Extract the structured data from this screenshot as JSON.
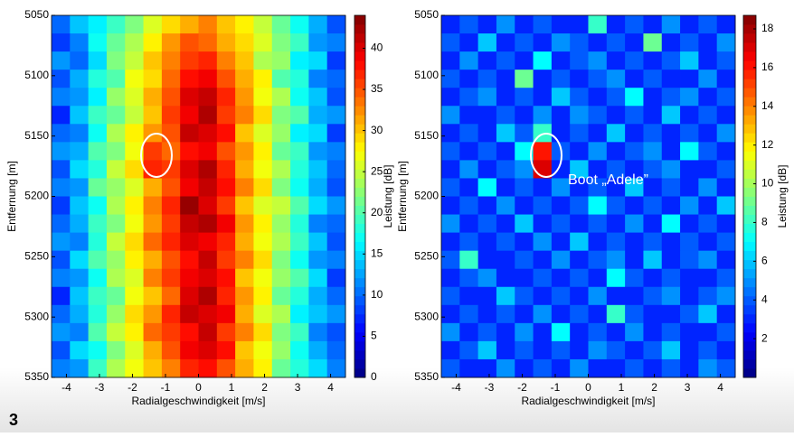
{
  "figure_label": "3",
  "chart_data": [
    {
      "type": "heatmap",
      "colormap": "jet",
      "xlabel": "Radialgeschwindigkeit [m/s]",
      "ylabel": "Entfernung [m]",
      "xlim": [
        -4.45,
        4.45
      ],
      "xticks": [
        -4,
        -3,
        -2,
        -1,
        0,
        1,
        2,
        3,
        4
      ],
      "ylim": [
        5050,
        5350
      ],
      "yticks": [
        5050,
        5100,
        5150,
        5200,
        5250,
        5300,
        5350
      ],
      "colorbar_label": "Leistung [dB]",
      "clim": [
        0,
        44
      ],
      "cticks": [
        0,
        5,
        10,
        15,
        20,
        25,
        30,
        35,
        40
      ],
      "z": [
        [
          10,
          14,
          16,
          19,
          22,
          26,
          29,
          31,
          33,
          30,
          28,
          25,
          21,
          17,
          13,
          9
        ],
        [
          8,
          11,
          17,
          21,
          24,
          28,
          32,
          35,
          34,
          31,
          29,
          26,
          22,
          19,
          12,
          11
        ],
        [
          12,
          10,
          15,
          22,
          25,
          30,
          33,
          36,
          37,
          33,
          30,
          24,
          23,
          16,
          15,
          8
        ],
        [
          9,
          13,
          18,
          20,
          27,
          29,
          34,
          38,
          39,
          35,
          31,
          28,
          20,
          18,
          11,
          10
        ],
        [
          11,
          12,
          16,
          23,
          26,
          31,
          35,
          40,
          41,
          37,
          32,
          27,
          24,
          17,
          14,
          9
        ],
        [
          7,
          14,
          19,
          21,
          25,
          30,
          36,
          39,
          42,
          36,
          33,
          29,
          22,
          20,
          13,
          12
        ],
        [
          10,
          11,
          17,
          24,
          28,
          32,
          35,
          41,
          40,
          38,
          30,
          26,
          23,
          16,
          15,
          8
        ],
        [
          12,
          13,
          20,
          22,
          27,
          36,
          34,
          38,
          39,
          35,
          32,
          28,
          21,
          19,
          12,
          11
        ],
        [
          9,
          15,
          18,
          25,
          29,
          37,
          36,
          40,
          42,
          37,
          31,
          27,
          24,
          18,
          14,
          10
        ],
        [
          11,
          12,
          21,
          23,
          26,
          31,
          35,
          39,
          41,
          38,
          33,
          29,
          22,
          17,
          13,
          9
        ],
        [
          8,
          14,
          17,
          24,
          28,
          33,
          37,
          43,
          40,
          36,
          30,
          26,
          25,
          20,
          15,
          12
        ],
        [
          10,
          13,
          19,
          22,
          27,
          32,
          36,
          41,
          42,
          39,
          32,
          28,
          23,
          18,
          11,
          10
        ],
        [
          12,
          11,
          18,
          25,
          29,
          34,
          37,
          40,
          39,
          37,
          31,
          27,
          24,
          19,
          14,
          9
        ],
        [
          9,
          15,
          20,
          23,
          28,
          31,
          35,
          38,
          41,
          36,
          33,
          29,
          22,
          17,
          12,
          11
        ],
        [
          11,
          12,
          17,
          24,
          26,
          33,
          36,
          39,
          40,
          38,
          30,
          27,
          23,
          20,
          15,
          8
        ],
        [
          7,
          14,
          19,
          21,
          27,
          30,
          34,
          40,
          42,
          37,
          32,
          28,
          21,
          18,
          13,
          10
        ],
        [
          10,
          13,
          18,
          23,
          29,
          32,
          37,
          41,
          40,
          39,
          31,
          26,
          24,
          16,
          14,
          12
        ],
        [
          12,
          11,
          20,
          25,
          28,
          34,
          36,
          38,
          41,
          36,
          33,
          29,
          22,
          19,
          11,
          9
        ],
        [
          9,
          15,
          17,
          22,
          26,
          31,
          35,
          39,
          40,
          38,
          30,
          27,
          23,
          17,
          13,
          10
        ],
        [
          11,
          12,
          19,
          24,
          27,
          30,
          33,
          37,
          38,
          35,
          31,
          28,
          21,
          18,
          15,
          11
        ]
      ]
    },
    {
      "type": "heatmap",
      "colormap": "jet",
      "xlabel": "Radialgeschwindigkeit [m/s]",
      "ylabel": "Entfernung [m]",
      "xlim": [
        -4.45,
        4.45
      ],
      "xticks": [
        -4,
        -3,
        -2,
        -1,
        0,
        1,
        2,
        3,
        4
      ],
      "ylim": [
        5050,
        5350
      ],
      "yticks": [
        5050,
        5100,
        5150,
        5200,
        5250,
        5300,
        5350
      ],
      "colorbar_label": "Leistung [dB]",
      "clim": [
        0,
        18.7
      ],
      "cticks": [
        2,
        4,
        6,
        8,
        10,
        12,
        14,
        16,
        18
      ],
      "annotation": "Boot „Adele”",
      "z": [
        [
          3,
          4,
          3,
          5,
          3,
          4,
          3,
          3,
          8,
          3,
          4,
          3,
          5,
          3,
          4,
          3
        ],
        [
          4,
          3,
          6,
          3,
          4,
          3,
          5,
          4,
          3,
          4,
          3,
          9,
          3,
          4,
          3,
          5
        ],
        [
          3,
          5,
          3,
          4,
          3,
          7,
          3,
          4,
          5,
          3,
          4,
          3,
          4,
          6,
          3,
          4
        ],
        [
          4,
          3,
          4,
          3,
          9,
          3,
          4,
          3,
          4,
          5,
          3,
          4,
          3,
          3,
          5,
          3
        ],
        [
          3,
          4,
          5,
          3,
          4,
          3,
          6,
          4,
          3,
          4,
          7,
          3,
          4,
          5,
          3,
          4
        ],
        [
          5,
          3,
          3,
          4,
          3,
          5,
          3,
          5,
          4,
          3,
          4,
          3,
          6,
          3,
          4,
          3
        ],
        [
          3,
          4,
          3,
          6,
          4,
          8,
          3,
          4,
          3,
          6,
          3,
          4,
          3,
          4,
          3,
          5
        ],
        [
          4,
          3,
          4,
          3,
          7,
          16,
          4,
          3,
          5,
          3,
          4,
          5,
          3,
          7,
          4,
          3
        ],
        [
          3,
          5,
          3,
          4,
          5,
          17,
          3,
          6,
          3,
          4,
          3,
          4,
          5,
          3,
          3,
          4
        ],
        [
          4,
          3,
          7,
          3,
          4,
          3,
          5,
          3,
          4,
          3,
          6,
          3,
          4,
          3,
          5,
          3
        ],
        [
          3,
          4,
          3,
          5,
          3,
          4,
          3,
          4,
          7,
          4,
          3,
          4,
          3,
          5,
          3,
          6
        ],
        [
          5,
          3,
          4,
          3,
          6,
          3,
          4,
          3,
          4,
          3,
          5,
          3,
          7,
          3,
          4,
          3
        ],
        [
          3,
          4,
          3,
          4,
          3,
          5,
          3,
          6,
          3,
          4,
          3,
          4,
          3,
          4,
          3,
          4
        ],
        [
          4,
          8,
          3,
          3,
          4,
          3,
          5,
          3,
          4,
          5,
          3,
          6,
          3,
          4,
          5,
          3
        ],
        [
          3,
          4,
          5,
          3,
          3,
          4,
          3,
          4,
          3,
          7,
          4,
          3,
          4,
          3,
          3,
          4
        ],
        [
          4,
          3,
          3,
          6,
          4,
          3,
          4,
          3,
          5,
          3,
          3,
          4,
          5,
          3,
          4,
          5
        ],
        [
          3,
          4,
          3,
          4,
          3,
          5,
          3,
          4,
          3,
          8,
          4,
          3,
          3,
          4,
          6,
          3
        ],
        [
          5,
          3,
          4,
          3,
          5,
          3,
          7,
          3,
          4,
          3,
          5,
          3,
          4,
          3,
          3,
          4
        ],
        [
          3,
          4,
          6,
          3,
          4,
          3,
          4,
          3,
          5,
          4,
          3,
          4,
          6,
          3,
          4,
          3
        ],
        [
          4,
          3,
          3,
          5,
          3,
          4,
          3,
          5,
          3,
          3,
          4,
          3,
          4,
          3,
          5,
          4
        ]
      ]
    }
  ]
}
